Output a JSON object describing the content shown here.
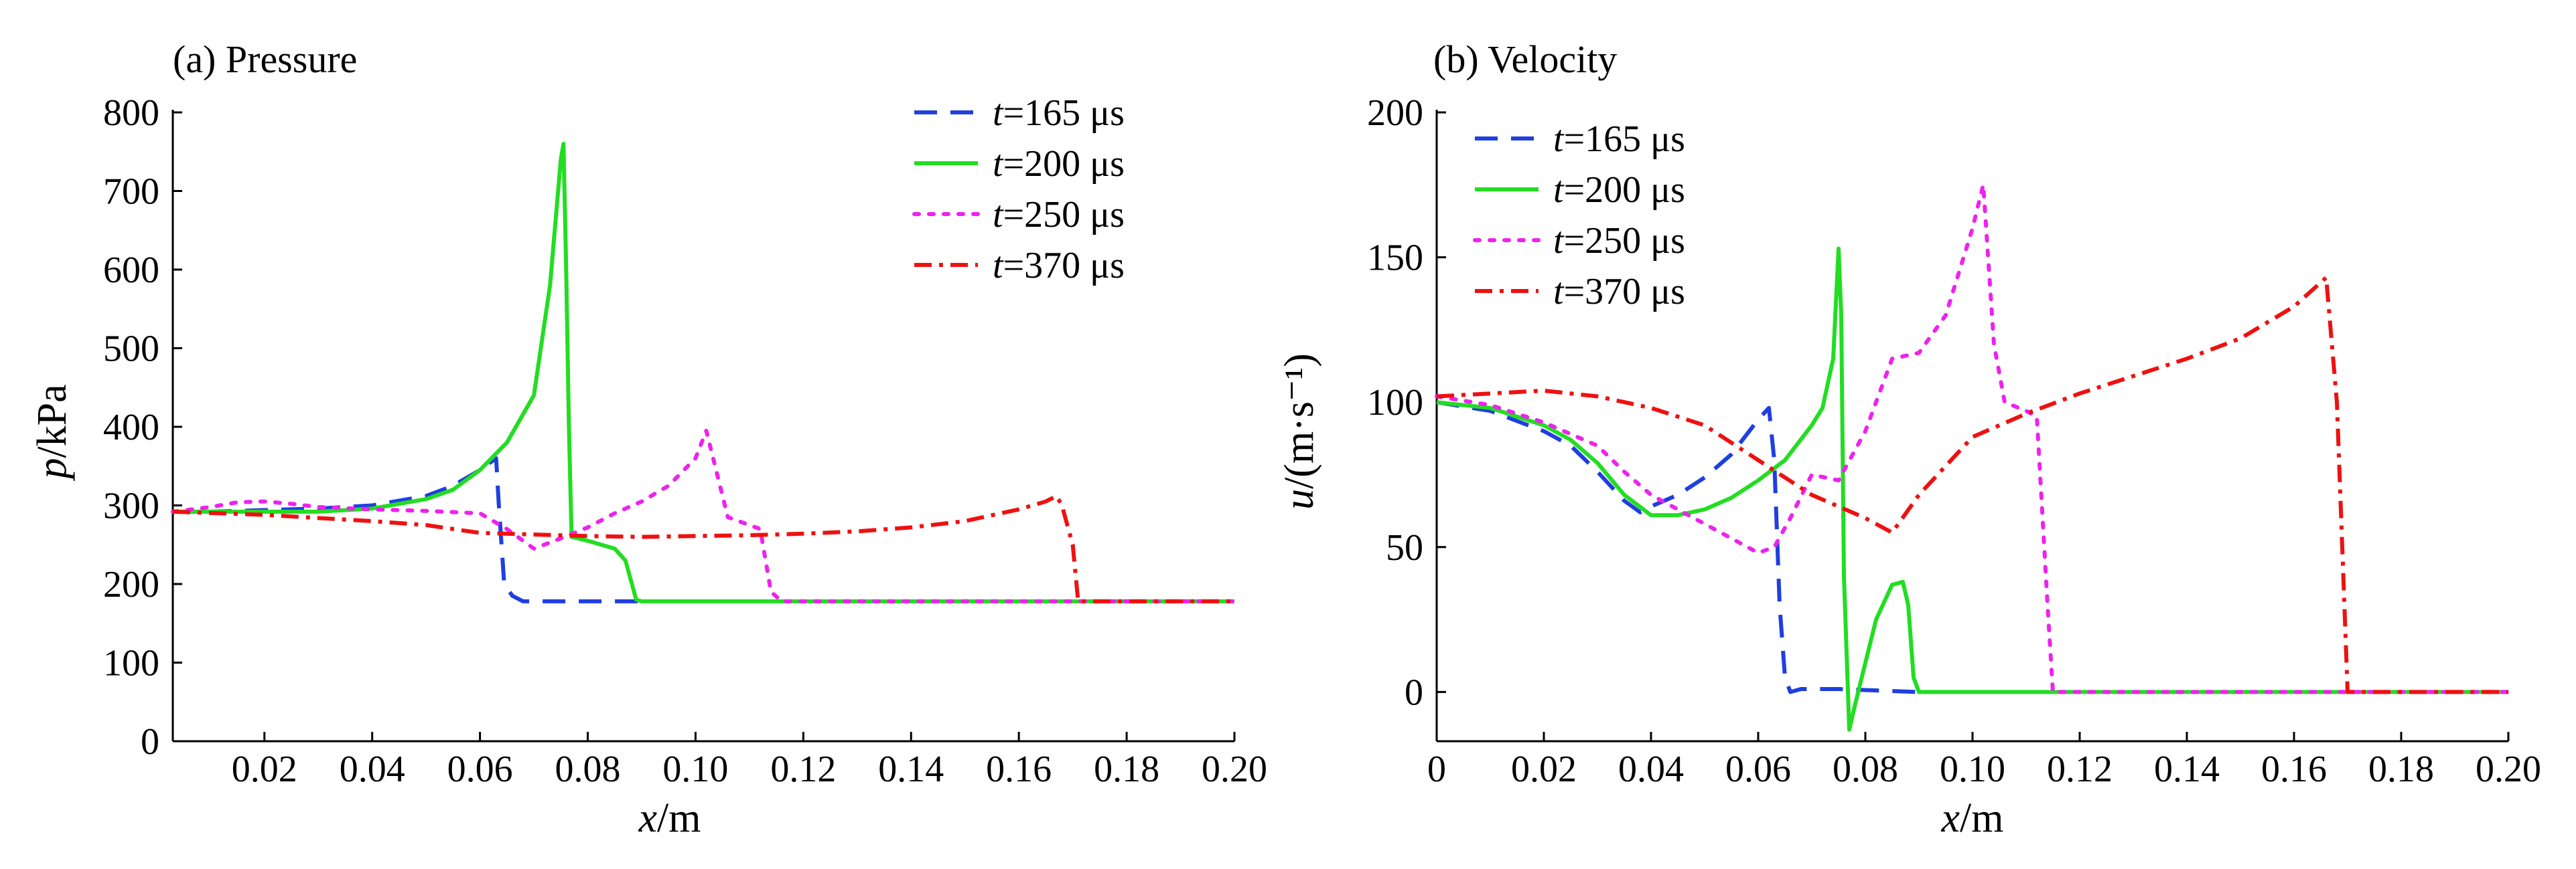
{
  "chart_data": [
    {
      "type": "line",
      "title": "(a) Pressure",
      "xlabel": "x/m",
      "ylabel": "p/kPa",
      "xlim": [
        0.003,
        0.2
      ],
      "ylim": [
        0,
        800
      ],
      "xticks": [
        0.02,
        0.04,
        0.06,
        0.08,
        0.1,
        0.12,
        0.14,
        0.16,
        0.18,
        0.2
      ],
      "xtick_labels": [
        "0.02",
        "0.04",
        "0.06",
        "0.08",
        "0.10",
        "0.12",
        "0.14",
        "0.16",
        "0.18",
        "0.20"
      ],
      "yticks": [
        0,
        100,
        200,
        300,
        400,
        500,
        600,
        700,
        800
      ],
      "ytick_labels": [
        "0",
        "100",
        "200",
        "300",
        "400",
        "500",
        "600",
        "700",
        "800"
      ],
      "grid": false,
      "legend_position": "top-right",
      "series": [
        {
          "name": "t=165 μs",
          "name_var": "t",
          "name_rest": "=165 μs",
          "color": "#1f3fe0",
          "style": "dashed",
          "x": [
            0.003,
            0.01,
            0.02,
            0.03,
            0.04,
            0.05,
            0.055,
            0.06,
            0.063,
            0.0635,
            0.0645,
            0.066,
            0.068,
            0.075,
            0.085,
            0.09
          ],
          "y": [
            292,
            292,
            294,
            296,
            300,
            312,
            325,
            345,
            360,
            300,
            200,
            185,
            178,
            178,
            178,
            178
          ]
        },
        {
          "name": "t=200 μs",
          "name_var": "t",
          "name_rest": "=200 μs",
          "color": "#22dd22",
          "style": "solid",
          "x": [
            0.003,
            0.01,
            0.02,
            0.03,
            0.04,
            0.05,
            0.055,
            0.06,
            0.065,
            0.07,
            0.073,
            0.075,
            0.0755,
            0.076,
            0.0765,
            0.077,
            0.08,
            0.085,
            0.087,
            0.089,
            0.09,
            0.1,
            0.12,
            0.15,
            0.18,
            0.2
          ],
          "y": [
            292,
            292,
            292,
            292,
            296,
            308,
            320,
            345,
            380,
            440,
            580,
            740,
            760,
            600,
            400,
            260,
            255,
            245,
            230,
            180,
            178,
            178,
            178,
            178,
            178,
            178
          ]
        },
        {
          "name": "t=250 μs",
          "name_var": "t",
          "name_rest": "=250 μs",
          "color": "#ee22ee",
          "style": "dotted",
          "x": [
            0.003,
            0.01,
            0.015,
            0.02,
            0.025,
            0.03,
            0.04,
            0.05,
            0.06,
            0.065,
            0.07,
            0.075,
            0.08,
            0.085,
            0.09,
            0.095,
            0.1,
            0.102,
            0.104,
            0.106,
            0.11,
            0.112,
            0.114,
            0.116,
            0.13,
            0.15,
            0.18,
            0.2
          ],
          "y": [
            292,
            298,
            304,
            305,
            302,
            298,
            295,
            293,
            290,
            270,
            245,
            258,
            272,
            290,
            305,
            325,
            360,
            395,
            340,
            285,
            275,
            270,
            190,
            178,
            178,
            178,
            178,
            178
          ]
        },
        {
          "name": "t=370 μs",
          "name_var": "t",
          "name_rest": "=370 μs",
          "color": "#ee1111",
          "style": "dashdot",
          "x": [
            0.003,
            0.02,
            0.04,
            0.05,
            0.06,
            0.07,
            0.08,
            0.09,
            0.1,
            0.11,
            0.12,
            0.13,
            0.14,
            0.15,
            0.16,
            0.165,
            0.167,
            0.168,
            0.17,
            0.171,
            0.18,
            0.2
          ],
          "y": [
            292,
            288,
            280,
            275,
            265,
            263,
            261,
            260,
            261,
            262,
            264,
            267,
            272,
            280,
            295,
            305,
            312,
            300,
            250,
            178,
            178,
            178
          ]
        }
      ]
    },
    {
      "type": "line",
      "title": "(b) Velocity",
      "xlabel": "x/m",
      "ylabel": "u/(m·s⁻¹)",
      "xlim": [
        0,
        0.2
      ],
      "ylim": [
        -17,
        200
      ],
      "xticks": [
        0,
        0.02,
        0.04,
        0.06,
        0.08,
        0.1,
        0.12,
        0.14,
        0.16,
        0.18,
        0.2
      ],
      "xtick_labels": [
        "0",
        "0.02",
        "0.04",
        "0.06",
        "0.08",
        "0.10",
        "0.12",
        "0.14",
        "0.16",
        "0.18",
        "0.20"
      ],
      "yticks": [
        0,
        50,
        100,
        150,
        200
      ],
      "ytick_labels": [
        "0",
        "50",
        "100",
        "150",
        "200"
      ],
      "grid": false,
      "legend_position": "top-left",
      "series": [
        {
          "name": "t=165 μs",
          "name_var": "t",
          "name_rest": "=165 μs",
          "color": "#1f3fe0",
          "style": "dashed",
          "x": [
            0,
            0.01,
            0.02,
            0.025,
            0.03,
            0.035,
            0.038,
            0.04,
            0.045,
            0.05,
            0.055,
            0.06,
            0.062,
            0.063,
            0.064,
            0.065,
            0.066,
            0.068,
            0.075,
            0.09
          ],
          "y": [
            100,
            97,
            90,
            85,
            76,
            66,
            62,
            64,
            68,
            74,
            82,
            94,
            98,
            80,
            30,
            5,
            0,
            1,
            1,
            0
          ]
        },
        {
          "name": "t=200 μs",
          "name_var": "t",
          "name_rest": "=200 μs",
          "color": "#22dd22",
          "style": "solid",
          "x": [
            0,
            0.01,
            0.02,
            0.025,
            0.03,
            0.035,
            0.04,
            0.045,
            0.05,
            0.055,
            0.06,
            0.065,
            0.07,
            0.072,
            0.074,
            0.075,
            0.0755,
            0.076,
            0.077,
            0.078,
            0.08,
            0.082,
            0.085,
            0.087,
            0.088,
            0.089,
            0.09,
            0.1,
            0.2
          ],
          "y": [
            100,
            98,
            92,
            87,
            79,
            68,
            61,
            61,
            63,
            67,
            73,
            80,
            92,
            98,
            115,
            153,
            130,
            40,
            -13,
            -5,
            10,
            25,
            37,
            38,
            30,
            5,
            0,
            0,
            0
          ]
        },
        {
          "name": "t=250 μs",
          "name_var": "t",
          "name_rest": "=250 μs",
          "color": "#ee22ee",
          "style": "dotted",
          "x": [
            0,
            0.01,
            0.02,
            0.03,
            0.035,
            0.04,
            0.05,
            0.055,
            0.06,
            0.063,
            0.066,
            0.07,
            0.075,
            0.08,
            0.085,
            0.09,
            0.095,
            0.1,
            0.102,
            0.104,
            0.106,
            0.11,
            0.112,
            0.114,
            0.115,
            0.12,
            0.2
          ],
          "y": [
            102,
            99,
            93,
            85,
            76,
            68,
            58,
            53,
            48,
            50,
            60,
            75,
            73,
            90,
            115,
            117,
            130,
            160,
            175,
            120,
            100,
            97,
            95,
            30,
            0,
            0,
            0
          ]
        },
        {
          "name": "t=370 μs",
          "name_var": "t",
          "name_rest": "=370 μs",
          "color": "#ee1111",
          "style": "dashdot",
          "x": [
            0,
            0.01,
            0.02,
            0.03,
            0.04,
            0.05,
            0.06,
            0.07,
            0.08,
            0.085,
            0.09,
            0.1,
            0.11,
            0.12,
            0.13,
            0.14,
            0.15,
            0.16,
            0.166,
            0.168,
            0.17,
            0.18,
            0.2
          ],
          "y": [
            102,
            103,
            104,
            102,
            98,
            92,
            80,
            68,
            60,
            55,
            68,
            88,
            96,
            103,
            109,
            115,
            122,
            133,
            143,
            100,
            0,
            0,
            0
          ]
        }
      ]
    }
  ]
}
